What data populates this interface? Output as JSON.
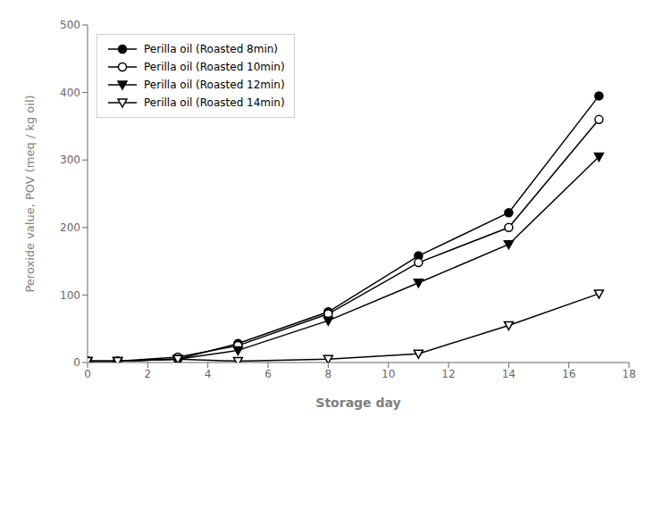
{
  "chart_data": {
    "type": "line",
    "x": [
      0,
      1,
      3,
      5,
      8,
      11,
      14,
      17
    ],
    "series": [
      {
        "name": "Perilla oil (Roasted 8min)",
        "color": "black",
        "marker": "circle",
        "values": [
          2,
          2,
          5,
          28,
          75,
          158,
          222,
          395
        ]
      },
      {
        "name": "Perilla oil (Roasted 10min)",
        "color": "black",
        "marker": "circle_open",
        "values": [
          2,
          2,
          8,
          25,
          72,
          148,
          200,
          360
        ]
      },
      {
        "name": "Perilla oil (Roasted 12min)",
        "color": "black",
        "marker": "triangle_down",
        "values": [
          2,
          2,
          5,
          18,
          62,
          118,
          175,
          305
        ]
      },
      {
        "name": "Perilla oil (Roasted 14min)",
        "color": "black",
        "marker": "triangle_down_open",
        "values": [
          2,
          2,
          5,
          2,
          5,
          13,
          55,
          102
        ]
      }
    ],
    "xlabel": "Storage day",
    "ylabel": "Peroxide value, POV (meq / kg oil)",
    "xlim": [
      0,
      18
    ],
    "ylim": [
      0,
      500
    ],
    "xticks": [
      0,
      2,
      4,
      6,
      8,
      10,
      12,
      14,
      16,
      18
    ],
    "yticks": [
      0,
      100,
      200,
      300,
      400,
      500
    ],
    "grid": false,
    "legend": "upper left"
  }
}
